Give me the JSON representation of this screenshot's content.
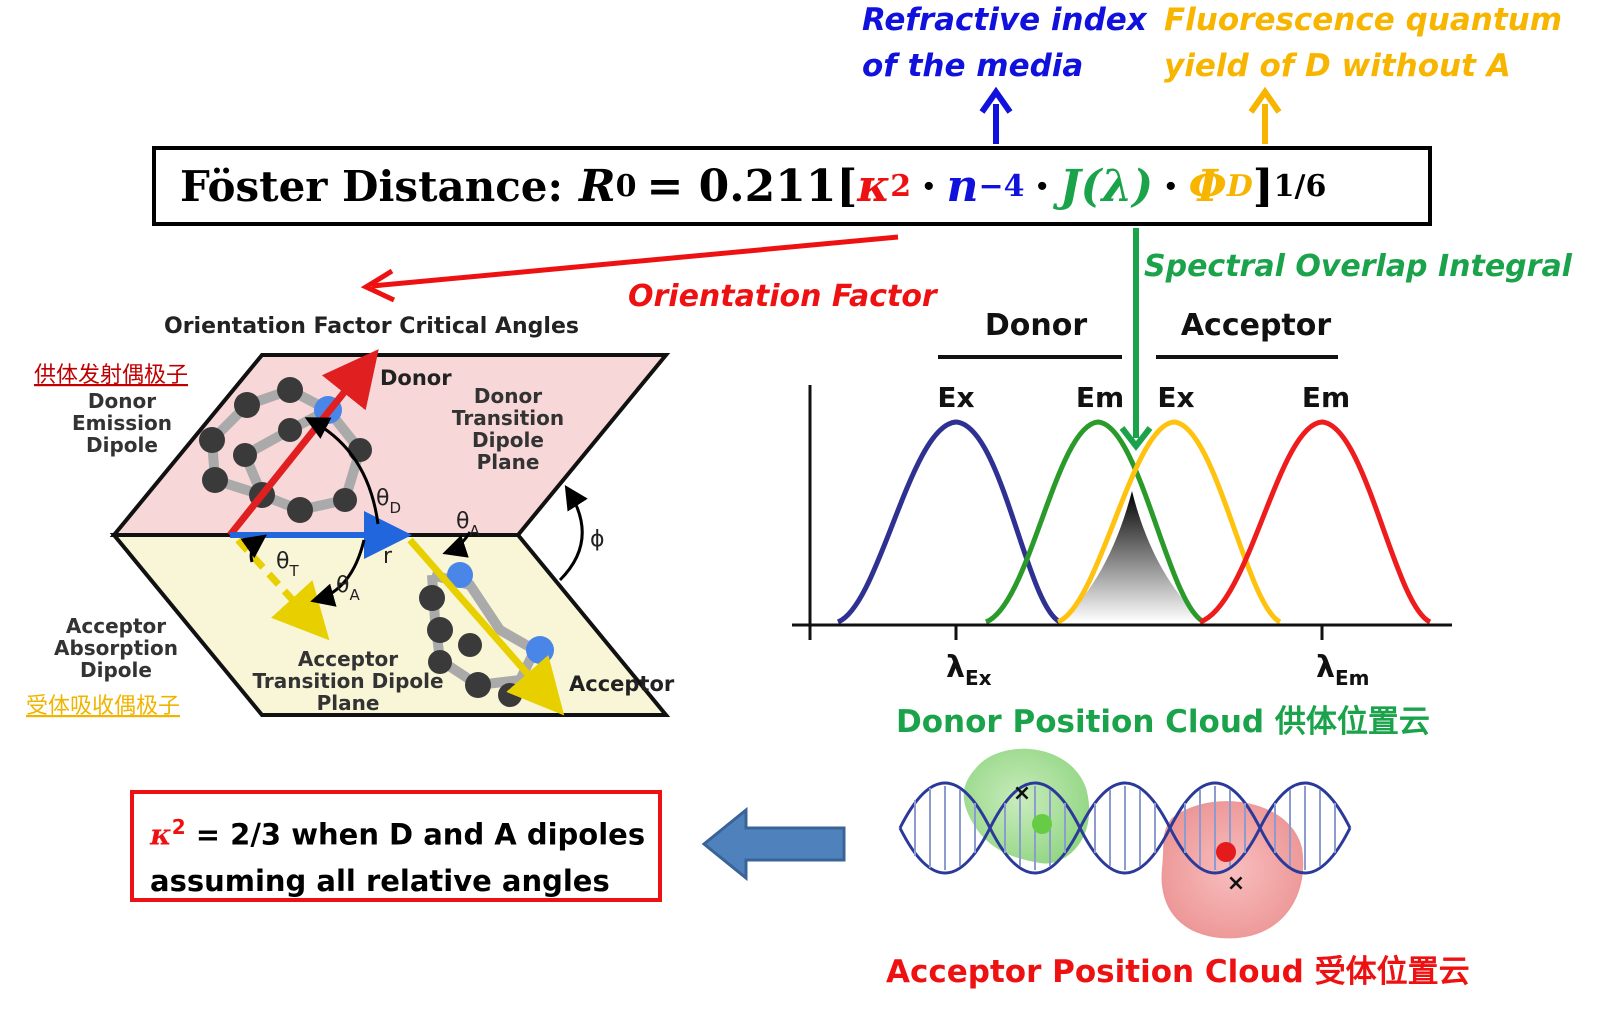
{
  "formula": {
    "prefix": "Föster Distance:",
    "r": "R",
    "r_sub": "0",
    "equals_coef": "= 0.211[",
    "kappa": "κ",
    "kappa_exp": "2",
    "dot": "·",
    "n": "n",
    "n_exp": "−4",
    "j": "J(λ)",
    "phi": "Φ",
    "phi_sub": "D",
    "close": "]",
    "power": "1/6"
  },
  "labels": {
    "refractive_line1": "Refractive index",
    "refractive_line2": "of the media",
    "fluor_line1": "Fluorescence quantum",
    "fluor_line2": "yield of D without A",
    "orientation_factor": "Orientation Factor",
    "spectral_overlap": "Spectral Overlap Integral"
  },
  "orientation_diagram": {
    "title": "Orientation Factor Critical Angles",
    "donor_cn": "供体发射偶极子",
    "donor_emission_1": "Donor",
    "donor_emission_2": "Emission",
    "donor_emission_3": "Dipole",
    "donor": "Donor",
    "donor_plane_1": "Donor",
    "donor_plane_2": "Transition",
    "donor_plane_3": "Dipole",
    "donor_plane_4": "Plane",
    "theta": "θ",
    "sub_d": "D",
    "sub_a": "A",
    "sub_t": "T",
    "r": "r",
    "phi": "ϕ",
    "acceptor_abs_1": "Acceptor",
    "acceptor_abs_2": "Absorption",
    "acceptor_abs_3": "Dipole",
    "acceptor_cn": "受体吸收偶极子",
    "acceptor_plane_1": "Acceptor",
    "acceptor_plane_2": "Transition Dipole",
    "acceptor_plane_3": "Plane",
    "acceptor": "Acceptor"
  },
  "spectrum": {
    "donor_header": "Donor",
    "acceptor_header": "Acceptor",
    "ex1": "Ex",
    "em1": "Em",
    "ex2": "Ex",
    "em2": "Em",
    "lambda": "λ",
    "lambda_ex_sub": "Ex",
    "lambda_em_sub": "Em",
    "colors": {
      "donor_ex": "#2e3192",
      "donor_em": "#2a9a2a",
      "acceptor_ex": "#ffc20e",
      "acceptor_em": "#ee1c1c"
    }
  },
  "dna": {
    "donor_cloud": "Donor Position Cloud 供体位置云",
    "acceptor_cloud": "Acceptor Position Cloud 受体位置云",
    "marker": "×"
  },
  "kappa_note": {
    "kappa": "κ",
    "exp": "2",
    "line1_rest": " = 2/3 when D and A dipoles",
    "line2": "assuming all relative angles"
  },
  "colors": {
    "red": "#ee1111",
    "blue": "#1111dd",
    "green": "#1aa34a",
    "orange": "#f7b500"
  }
}
